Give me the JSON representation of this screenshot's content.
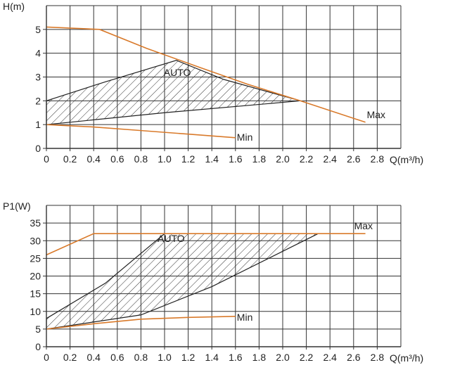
{
  "colors": {
    "curve": "#d97a2b",
    "auto_outline": "#222222",
    "hatch": "#333333",
    "grid": "#333333",
    "background": "#ffffff"
  },
  "chart_data": [
    {
      "type": "line",
      "ylabel": "H(m)",
      "xlabel": "Q(m³/h)",
      "xlim": [
        0,
        3.0
      ],
      "ylim": [
        0,
        6
      ],
      "x_ticks": [
        "0",
        "0.2",
        "0.4",
        "0.6",
        "0.8",
        "1.0",
        "1.2",
        "1.4",
        "1.6",
        "1.8",
        "2.0",
        "2.2",
        "2.4",
        "2.6",
        "2.8"
      ],
      "y_ticks": [
        "0",
        "1",
        "2",
        "3",
        "4",
        "5"
      ],
      "grid": true,
      "series": [
        {
          "name": "Max",
          "x": [
            0,
            0.45,
            0.85,
            1.3,
            1.7,
            2.15,
            2.7
          ],
          "y": [
            5.1,
            5.0,
            4.2,
            3.4,
            2.7,
            2.0,
            1.1
          ]
        },
        {
          "name": "Min",
          "x": [
            0,
            0.4,
            0.8,
            1.2,
            1.6
          ],
          "y": [
            1.0,
            0.9,
            0.75,
            0.6,
            0.45
          ]
        }
      ],
      "auto_region": {
        "name": "AUTO",
        "upper": {
          "x": [
            0,
            0.5,
            1.1,
            1.5,
            2.15
          ],
          "y": [
            2.0,
            2.8,
            3.7,
            2.9,
            2.0
          ]
        },
        "lower": {
          "x": [
            0,
            1.0,
            2.15
          ],
          "y": [
            1.0,
            1.5,
            2.0
          ]
        }
      }
    },
    {
      "type": "line",
      "ylabel": "P1(W)",
      "xlabel": "Q(m³/h)",
      "xlim": [
        0,
        3.0
      ],
      "ylim": [
        0,
        40
      ],
      "x_ticks": [
        "0",
        "0.2",
        "0.4",
        "0.6",
        "0.8",
        "1.0",
        "1.2",
        "1.4",
        "1.6",
        "1.8",
        "2.0",
        "2.2",
        "2.4",
        "2.6",
        "2.8"
      ],
      "y_ticks": [
        "0",
        "5",
        "10",
        "15",
        "20",
        "25",
        "30",
        "35"
      ],
      "grid": true,
      "series": [
        {
          "name": "Max",
          "x": [
            0,
            0.4,
            2.7
          ],
          "y": [
            26,
            32,
            32
          ]
        },
        {
          "name": "Min",
          "x": [
            0,
            0.4,
            0.8,
            1.2,
            1.6
          ],
          "y": [
            5,
            6.5,
            7.8,
            8.3,
            8.6
          ]
        }
      ],
      "auto_region": {
        "name": "AUTO",
        "upper": {
          "x": [
            0,
            0.5,
            1.0,
            2.3
          ],
          "y": [
            8,
            18,
            32,
            32
          ]
        },
        "lower": {
          "x": [
            0,
            0.8,
            1.4,
            2.3
          ],
          "y": [
            5,
            9,
            17,
            32
          ]
        }
      }
    }
  ]
}
